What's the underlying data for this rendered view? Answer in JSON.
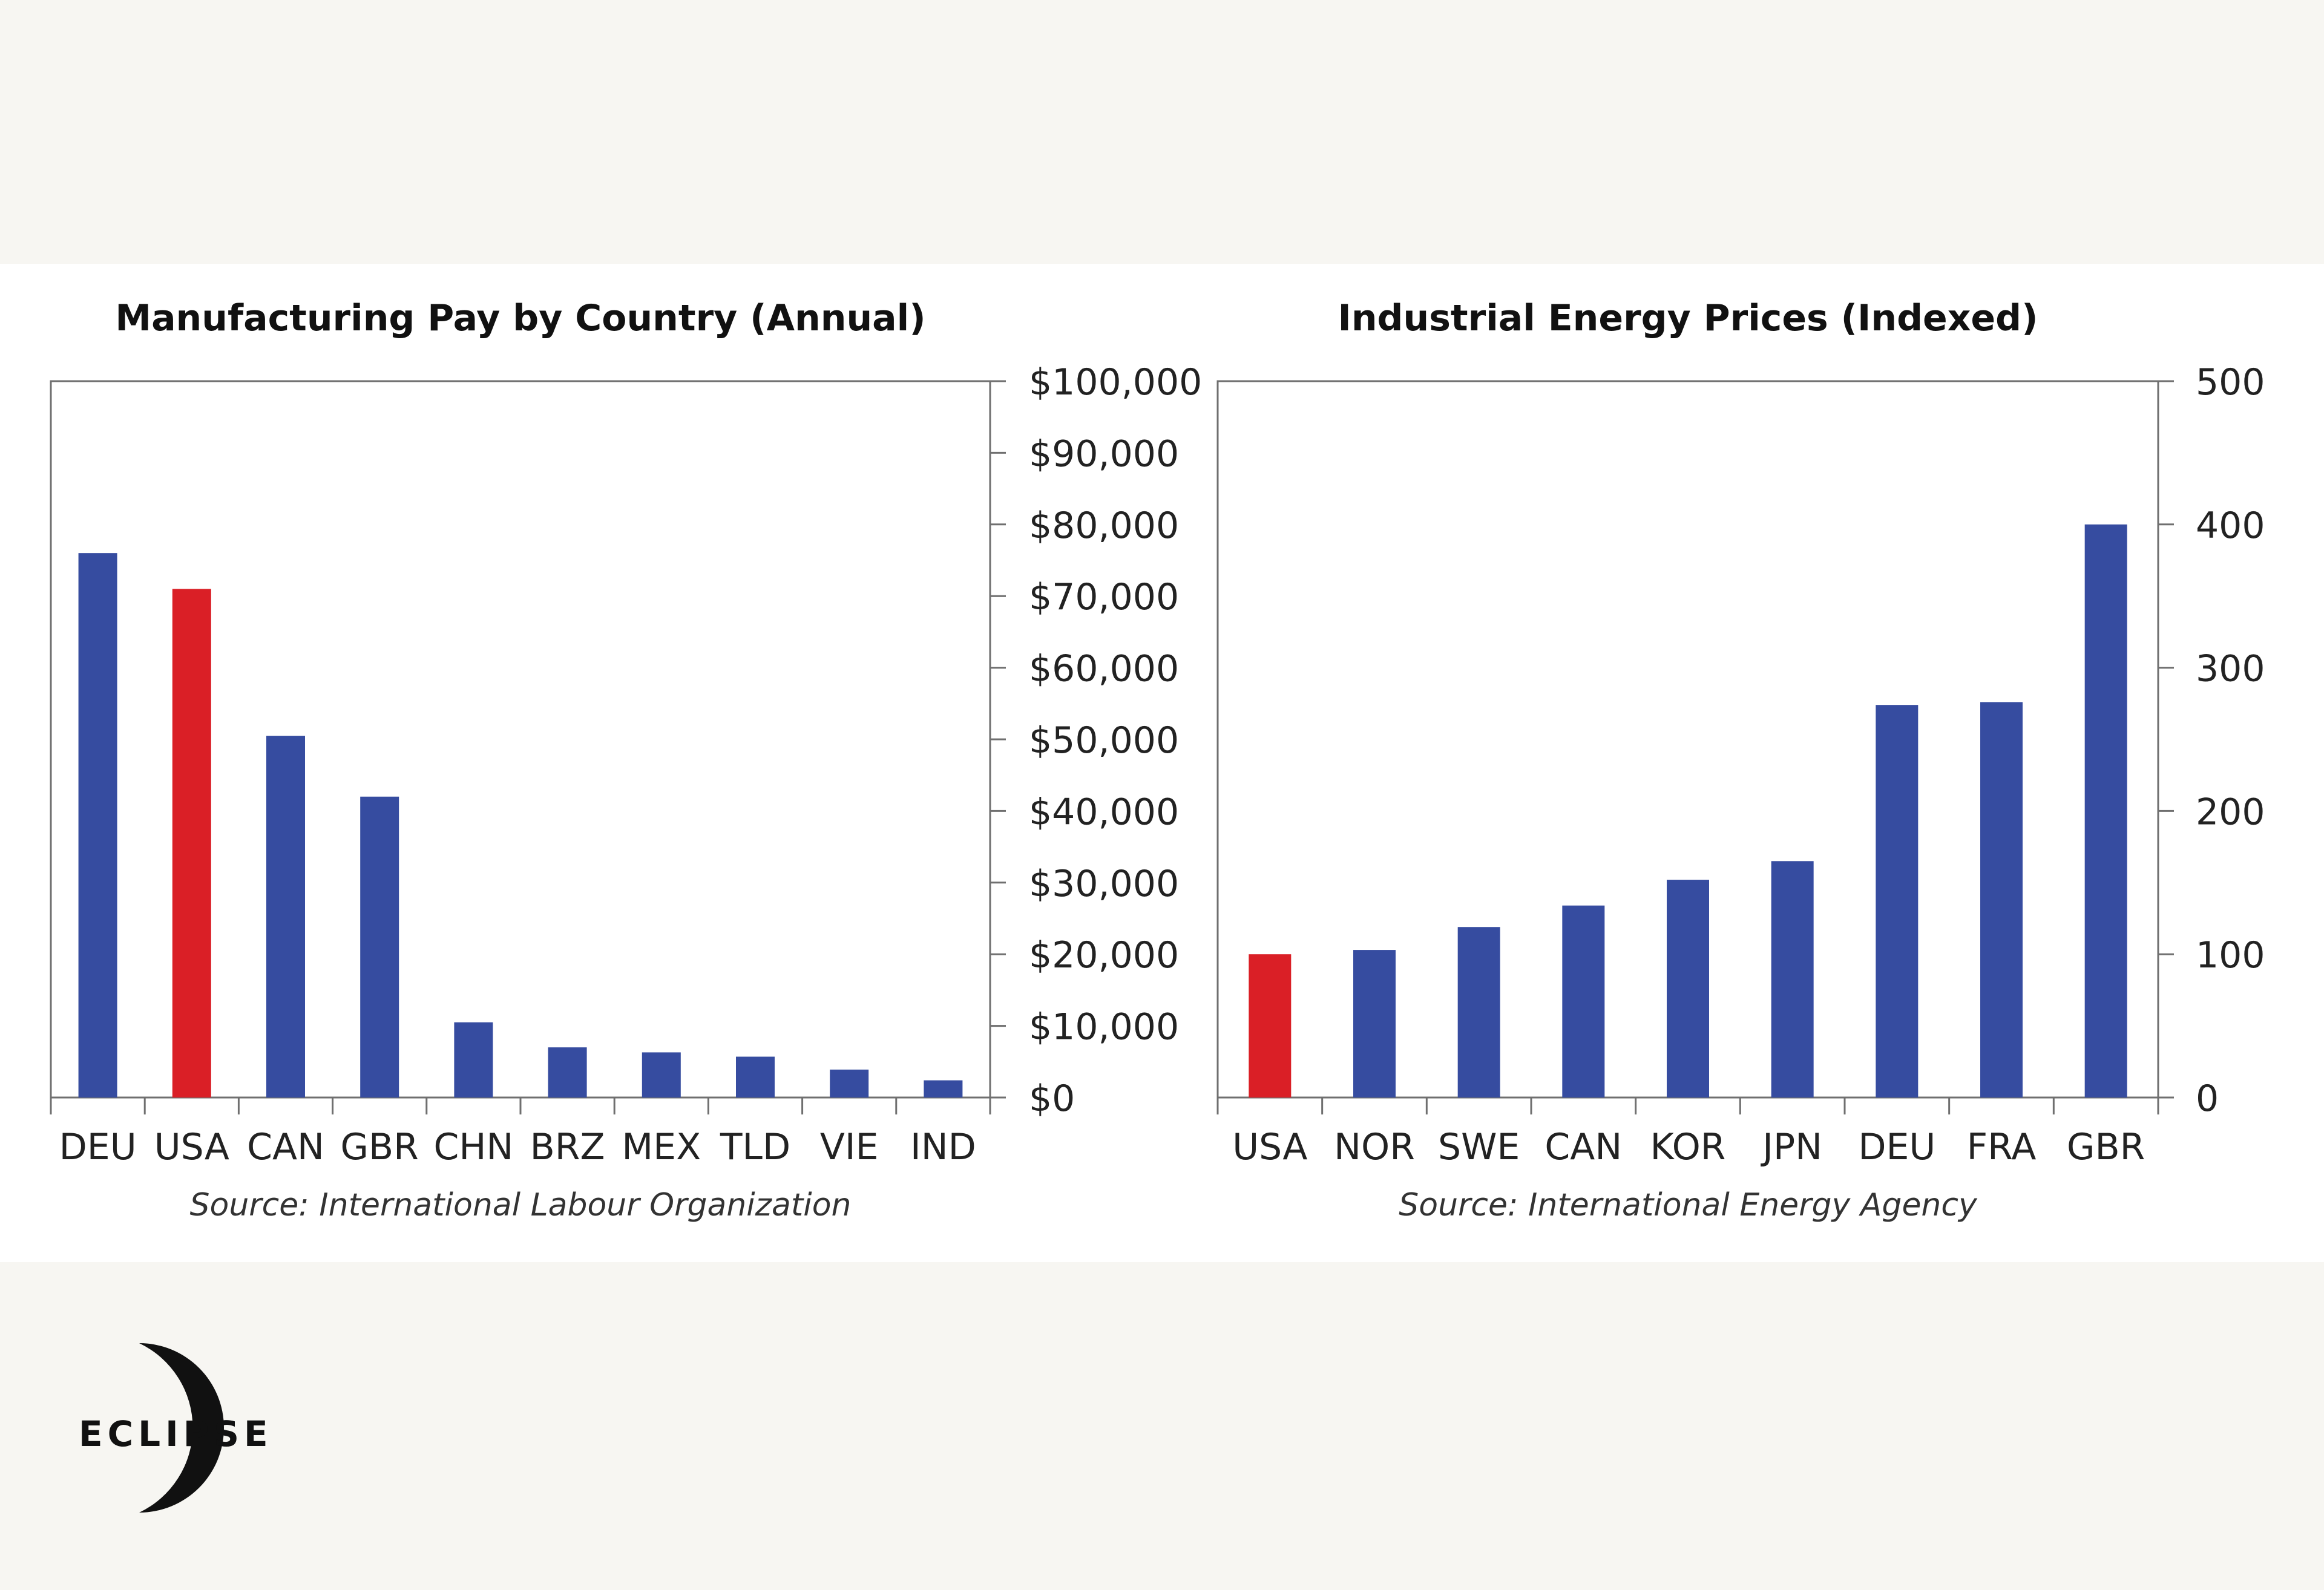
{
  "brand": {
    "logo_text": "ECLIPSE"
  },
  "colors": {
    "highlight": "#da1f26",
    "bar": "#364ca0",
    "axis": "#6f6f6f",
    "background": "#f7f6f2",
    "panel": "#ffffff"
  },
  "chart_data": [
    {
      "type": "bar",
      "title": "Manufacturing Pay by Country (Annual)",
      "categories": [
        "DEU",
        "USA",
        "CAN",
        "GBR",
        "CHN",
        "BRZ",
        "MEX",
        "TLD",
        "VIE",
        "IND"
      ],
      "values": [
        76000,
        71000,
        50500,
        42000,
        10500,
        7000,
        6300,
        5700,
        3900,
        2400
      ],
      "highlight_category": "USA",
      "ylim": [
        0,
        100000
      ],
      "y_ticks": [
        0,
        10000,
        20000,
        30000,
        40000,
        50000,
        60000,
        70000,
        80000,
        90000,
        100000
      ],
      "y_tick_labels": [
        "$0",
        "$10,000",
        "$20,000",
        "$30,000",
        "$40,000",
        "$50,000",
        "$60,000",
        "$70,000",
        "$80,000",
        "$90,000",
        "$100,000"
      ],
      "y_axis_side": "right",
      "source": "Source: International Labour Organization"
    },
    {
      "type": "bar",
      "title": "Industrial Energy Prices (Indexed)",
      "categories": [
        "USA",
        "NOR",
        "SWE",
        "CAN",
        "KOR",
        "JPN",
        "DEU",
        "FRA",
        "GBR"
      ],
      "values": [
        100,
        103,
        119,
        134,
        152,
        165,
        274,
        276,
        400
      ],
      "highlight_category": "USA",
      "ylim": [
        0,
        500
      ],
      "y_ticks": [
        0,
        100,
        200,
        300,
        400,
        500
      ],
      "y_tick_labels": [
        "0",
        "100",
        "200",
        "300",
        "400",
        "500"
      ],
      "y_axis_side": "right",
      "source": "Source: International Energy Agency"
    }
  ]
}
